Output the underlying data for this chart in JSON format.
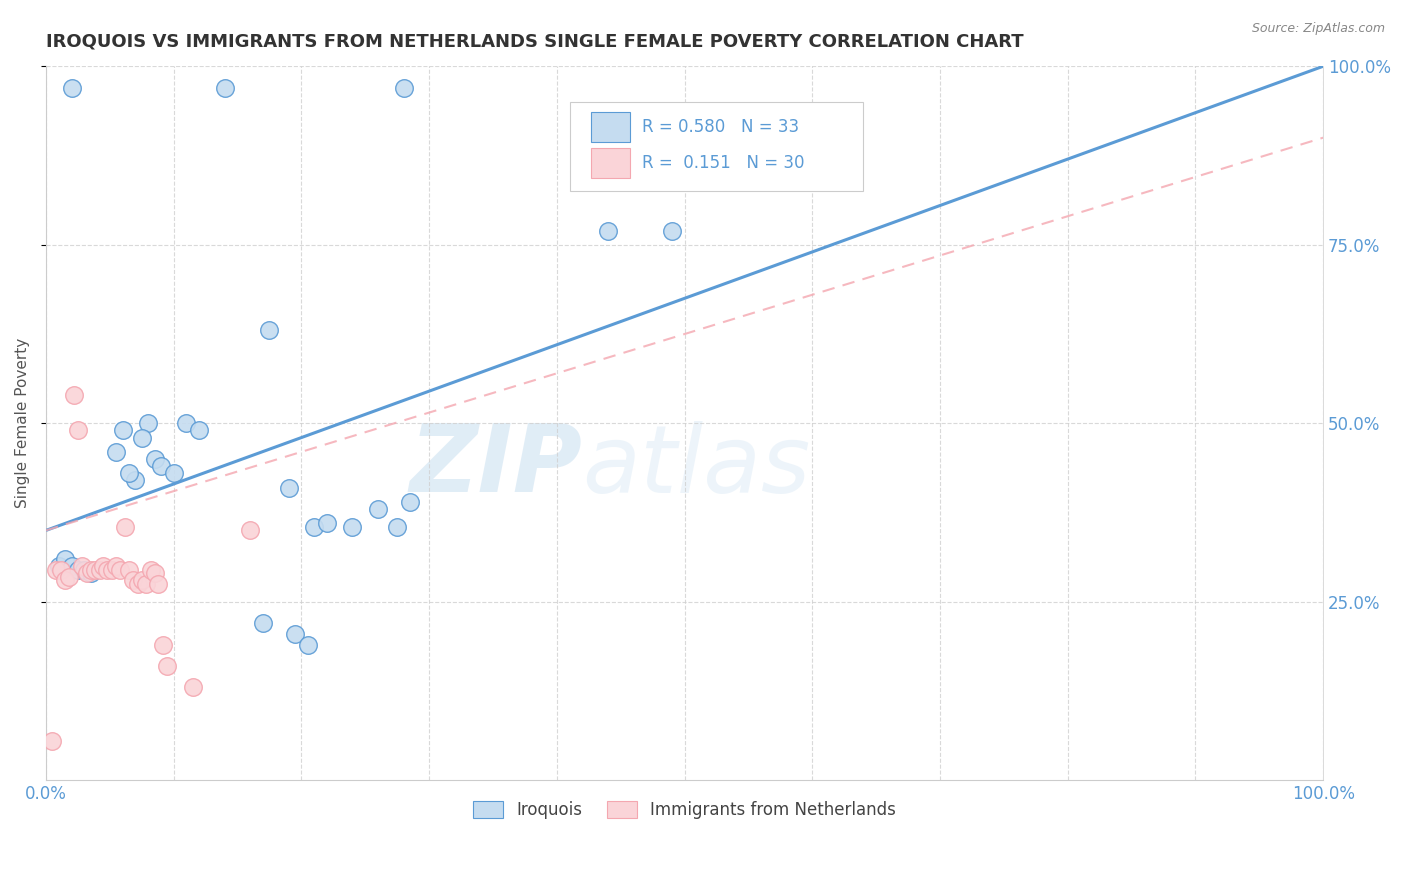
{
  "title": "IROQUOIS VS IMMIGRANTS FROM NETHERLANDS SINGLE FEMALE POVERTY CORRELATION CHART",
  "source": "Source: ZipAtlas.com",
  "ylabel": "Single Female Poverty",
  "legend_label1": "Iroquois",
  "legend_label2": "Immigrants from Netherlands",
  "r1": "0.580",
  "n1": "33",
  "r2": "0.151",
  "n2": "30",
  "watermark_zip": "ZIP",
  "watermark_atlas": "atlas",
  "blue_color": "#5b9bd5",
  "pink_color": "#f4a7b0",
  "blue_fill": "#c5dcf0",
  "pink_fill": "#fad4d8",
  "axis_color": "#5b9bd5",
  "grid_color": "#d0d0d0",
  "iroquois_x": [
    0.02,
    0.14,
    0.28,
    0.06,
    0.08,
    0.055,
    0.075,
    0.085,
    0.09,
    0.1,
    0.11,
    0.12,
    0.175,
    0.07,
    0.065,
    0.19,
    0.21,
    0.22,
    0.24,
    0.26,
    0.275,
    0.285,
    0.44,
    0.49,
    0.01,
    0.015,
    0.02,
    0.025,
    0.03,
    0.035,
    0.17,
    0.195,
    0.205
  ],
  "iroquois_y": [
    0.97,
    0.97,
    0.97,
    0.49,
    0.5,
    0.46,
    0.48,
    0.45,
    0.44,
    0.43,
    0.5,
    0.49,
    0.63,
    0.42,
    0.43,
    0.41,
    0.355,
    0.36,
    0.355,
    0.38,
    0.355,
    0.39,
    0.77,
    0.77,
    0.3,
    0.31,
    0.3,
    0.295,
    0.295,
    0.29,
    0.22,
    0.205,
    0.19
  ],
  "netherlands_x": [
    0.005,
    0.008,
    0.012,
    0.015,
    0.018,
    0.022,
    0.025,
    0.028,
    0.032,
    0.035,
    0.038,
    0.042,
    0.045,
    0.048,
    0.052,
    0.055,
    0.058,
    0.062,
    0.065,
    0.068,
    0.072,
    0.075,
    0.078,
    0.082,
    0.085,
    0.088,
    0.092,
    0.095,
    0.115,
    0.16
  ],
  "netherlands_y": [
    0.055,
    0.295,
    0.295,
    0.28,
    0.285,
    0.54,
    0.49,
    0.3,
    0.29,
    0.295,
    0.295,
    0.295,
    0.3,
    0.295,
    0.295,
    0.3,
    0.295,
    0.355,
    0.295,
    0.28,
    0.275,
    0.28,
    0.275,
    0.295,
    0.29,
    0.275,
    0.19,
    0.16,
    0.13,
    0.35
  ],
  "xlim": [
    0.0,
    1.0
  ],
  "ylim": [
    0.0,
    1.0
  ]
}
